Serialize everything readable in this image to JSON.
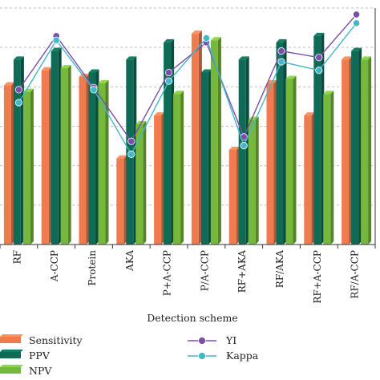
{
  "chart_data": {
    "type": "bar",
    "categories": [
      "RF",
      "A-CCP",
      "Protein",
      "AKA",
      "P+A-CCP",
      "P/A-CCP",
      "RF+AKA",
      "RF/AKA",
      "RF+A-CCP",
      "RF/A-CCP"
    ],
    "series": [
      {
        "name": "Sensitivity",
        "type": "bar",
        "color": "#f07b4f",
        "values": [
          0.74,
          0.81,
          0.78,
          0.4,
          0.6,
          0.98,
          0.44,
          0.75,
          0.6,
          0.86
        ]
      },
      {
        "name": "PPV",
        "type": "bar",
        "color": "#0f6b55",
        "values": [
          0.86,
          0.9,
          0.8,
          0.86,
          0.94,
          0.8,
          0.86,
          0.94,
          0.97,
          0.9
        ]
      },
      {
        "name": "NPV",
        "type": "bar",
        "color": "#76b83b",
        "values": [
          0.71,
          0.82,
          0.75,
          0.56,
          0.7,
          0.95,
          0.58,
          0.77,
          0.7,
          0.86
        ]
      },
      {
        "name": "YI",
        "type": "line",
        "color": "#7a4fa8",
        "values": [
          0.72,
          0.97,
          0.73,
          0.48,
          0.8,
          0.94,
          0.5,
          0.9,
          0.87,
          1.07
        ]
      },
      {
        "name": "Kappa",
        "type": "line",
        "color": "#43b8c8",
        "values": [
          0.66,
          0.95,
          0.72,
          0.42,
          0.76,
          0.96,
          0.46,
          0.85,
          0.81,
          1.03
        ]
      }
    ],
    "xlabel": "Detection scheme",
    "ylabel": "",
    "ylim": [
      0,
      1.1
    ],
    "grid": true,
    "legend_position": "bottom"
  }
}
